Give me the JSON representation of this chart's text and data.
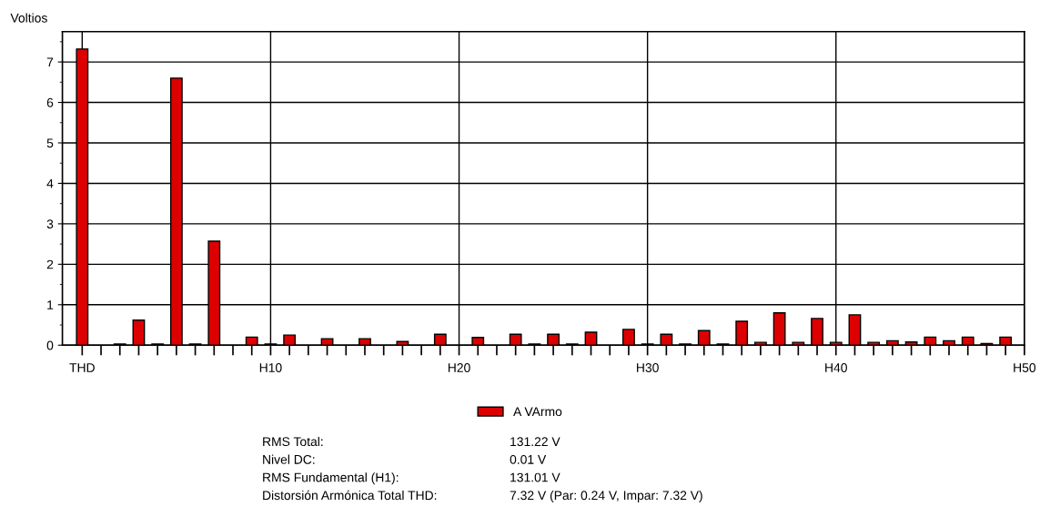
{
  "chart_data": {
    "type": "bar",
    "ylabel": "Voltios",
    "categories": [
      "THD",
      null,
      null,
      null,
      null,
      null,
      null,
      null,
      null,
      null,
      "H10",
      null,
      null,
      null,
      null,
      null,
      null,
      null,
      null,
      null,
      "H20",
      null,
      null,
      null,
      null,
      null,
      null,
      null,
      null,
      null,
      "H30",
      null,
      null,
      null,
      null,
      null,
      null,
      null,
      null,
      null,
      "H40",
      null,
      null,
      null,
      null,
      null,
      null,
      null,
      null,
      null,
      "H50"
    ],
    "series": [
      {
        "name": "A VArmo",
        "color": "#dd0000",
        "values": [
          7.32,
          null,
          0.03,
          0.62,
          0.03,
          6.6,
          0.03,
          2.57,
          null,
          0.2,
          0.03,
          0.25,
          null,
          0.16,
          null,
          0.16,
          null,
          0.09,
          null,
          0.27,
          null,
          0.19,
          null,
          0.27,
          0.03,
          0.27,
          0.03,
          0.32,
          null,
          0.39,
          0.03,
          0.27,
          0.03,
          0.36,
          0.03,
          0.59,
          0.07,
          0.8,
          0.07,
          0.66,
          0.07,
          0.75,
          0.07,
          0.11,
          0.08,
          0.2,
          0.11,
          0.2,
          0.04,
          0.2,
          null
        ]
      }
    ],
    "ylim": [
      0,
      7.75
    ],
    "yticks": [
      0,
      1,
      2,
      3,
      4,
      5,
      6,
      7
    ],
    "grid": true,
    "legend": "bottom",
    "annotations": [
      "RMS Total:",
      "131.22 V",
      "Nivel DC:",
      "0.01 V",
      "RMS Fundamental (H1):",
      "131.01 V",
      "Distorsión Armónica Total THD:",
      "7.32 V (Par: 0.24 V, Impar: 7.32 V)"
    ]
  }
}
